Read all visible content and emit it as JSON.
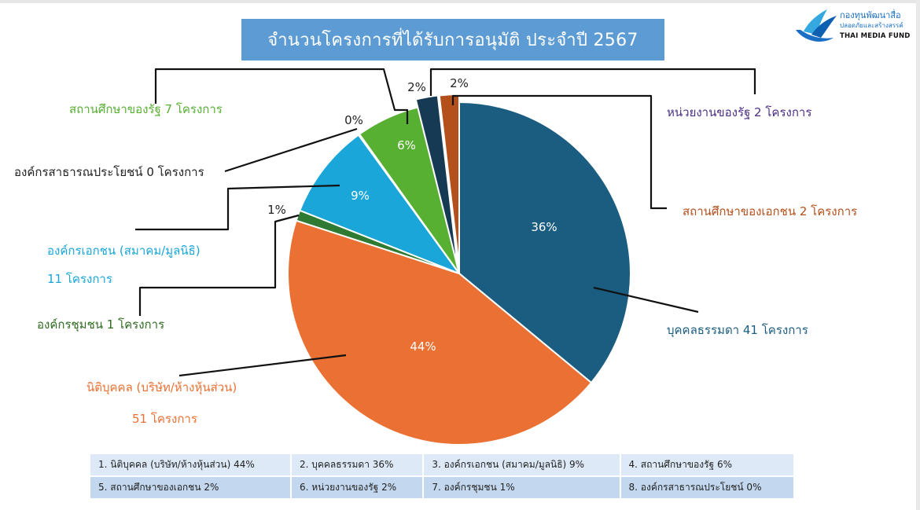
{
  "title": "จำนวนโครงการที่ได้รับการอนุมัติ ประจำปี 2567",
  "logo": {
    "name": "กองทุนพัฒนาสื่อ",
    "subtitle": "ปลอดภัยและสร้างสรรค์",
    "english": "THAI MEDIA FUND",
    "brand_color": "#1a6fc4"
  },
  "chart_data": {
    "type": "pie",
    "title": "จำนวนโครงการที่ได้รับการอนุมัติ ประจำปี 2567",
    "slices": [
      {
        "key": "s_natural",
        "pct_label": "36%",
        "value": 41,
        "color": "#1a5d80",
        "label_lines": [
          "บุคคลธรรมดา 41 โครงการ"
        ],
        "label_color": "#1a5d80"
      },
      {
        "key": "s_juristic",
        "pct_label": "44%",
        "value": 51,
        "color": "#ea7133",
        "label_lines": [
          "นิติบุคคล (บริษัท/ห้างหุ้นส่วน)",
          "51 โครงการ"
        ],
        "label_color": "#ea7133"
      },
      {
        "key": "s_community",
        "pct_label": "1%",
        "value": 1,
        "color": "#2e7a32",
        "label_lines": [
          "องค์กรชุมชน 1 โครงการ"
        ],
        "label_color": "#2e6a20"
      },
      {
        "key": "s_private_org",
        "pct_label": "9%",
        "value": 11,
        "color": "#1aa6d8",
        "label_lines": [
          "องค์กรเอกชน (สมาคม/มูลนิธิ)",
          "11 โครงการ"
        ],
        "label_color": "#1aa6d8"
      },
      {
        "key": "s_public_benefit",
        "pct_label": "0%",
        "value": 0,
        "color": "#1aa6d8",
        "label_lines": [
          "องค์กรสาธารณประโยชน์ 0 โครงการ"
        ],
        "label_color": "#222222"
      },
      {
        "key": "s_state_edu",
        "pct_label": "6%",
        "value": 7,
        "color": "#58b033",
        "label_lines": [
          "สถานศึกษาของรัฐ 7 โครงการ"
        ],
        "label_color": "#58b033"
      },
      {
        "key": "s_state_agency",
        "pct_label": "2%",
        "value": 2,
        "color": "#173a54",
        "label_lines": [
          "หน่วยงานของรัฐ 2 โครงการ"
        ],
        "label_color": "#4b2d86"
      },
      {
        "key": "s_private_edu",
        "pct_label": "2%",
        "value": 2,
        "color": "#b4501c",
        "label_lines": [
          "สถานศึกษาของเอกชน 2 โครงการ"
        ],
        "label_color": "#b4501c"
      }
    ]
  },
  "legend": {
    "row1": [
      "1. นิติบุคคล (บริษัท/ห้างหุ้นส่วน) 44%",
      "2. บุคคลธรรมดา 36%",
      "3. องค์กรเอกชน (สมาคม/มูลนิธิ) 9%",
      "4. สถานศึกษาของรัฐ 6%"
    ],
    "row2": [
      "5. สถานศึกษาของเอกชน 2%",
      "6. หน่วยงานของรัฐ 2%",
      "7. องค์กรชุมชน 1%",
      "8. องค์กรสาธารณประโยชน์ 0%"
    ]
  }
}
